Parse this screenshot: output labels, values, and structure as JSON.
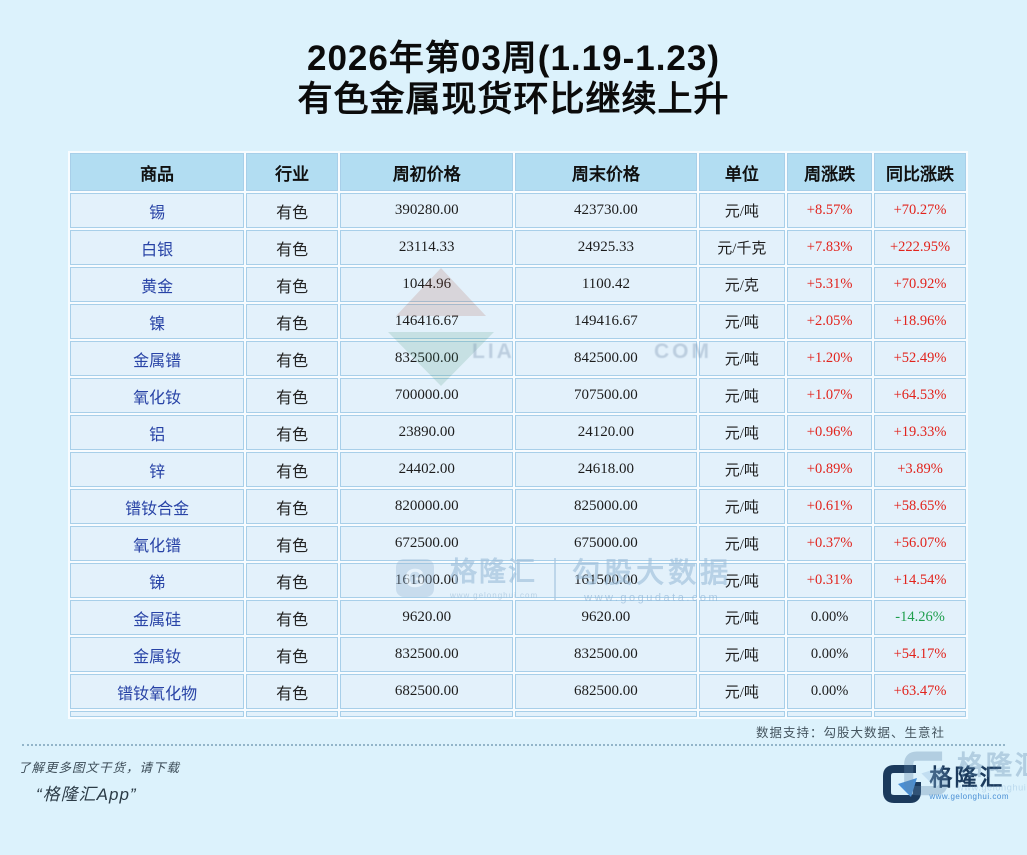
{
  "page": {
    "title_line1": "2026年第03周(1.19-1.23)",
    "title_line2": "有色金属现货环比继续上升",
    "support_note": "数据支持：勾股大数据、生意社",
    "footer": {
      "line1": "了解更多图文干货，请下载",
      "line2": "“格隆汇App”"
    },
    "brand": {
      "name": "格隆汇",
      "url": "www.gelonghui.com"
    },
    "watermarks": {
      "mid_left_initial": "G",
      "mid_left_name": "格隆汇",
      "mid_left_url": "www.gelonghui.com",
      "mid_right_name": "勾股大数据",
      "mid_right_url": "www.gogudata.com",
      "fragment_left": "LIA",
      "fragment_right": "COM"
    },
    "colors": {
      "background": "#dcf2fc",
      "header_cell": "#b2ddf2",
      "body_cell": "#e3f1fb",
      "cell_border": "#a8cfe9",
      "commodity_text": "#2843a6",
      "up_red": "#e2241d",
      "down_green": "#1f9e4d",
      "brand_navy": "#1b3a5c",
      "brand_blue": "#4a8fd4"
    }
  },
  "chart_data": {
    "type": "table",
    "title": "2026年第03周(1.19-1.23) 有色金属现货环比继续上升",
    "columns": [
      "商品",
      "行业",
      "周初价格",
      "周末价格",
      "单位",
      "周涨跌",
      "同比涨跌"
    ],
    "rows": [
      {
        "name": "锡",
        "industry": "有色",
        "start": "390280.00",
        "end": "423730.00",
        "unit": "元/吨",
        "wow": "+8.57%",
        "yoy": "+70.27%"
      },
      {
        "name": "白银",
        "industry": "有色",
        "start": "23114.33",
        "end": "24925.33",
        "unit": "元/千克",
        "wow": "+7.83%",
        "yoy": "+222.95%"
      },
      {
        "name": "黄金",
        "industry": "有色",
        "start": "1044.96",
        "end": "1100.42",
        "unit": "元/克",
        "wow": "+5.31%",
        "yoy": "+70.92%"
      },
      {
        "name": "镍",
        "industry": "有色",
        "start": "146416.67",
        "end": "149416.67",
        "unit": "元/吨",
        "wow": "+2.05%",
        "yoy": "+18.96%"
      },
      {
        "name": "金属镨",
        "industry": "有色",
        "start": "832500.00",
        "end": "842500.00",
        "unit": "元/吨",
        "wow": "+1.20%",
        "yoy": "+52.49%"
      },
      {
        "name": "氧化钕",
        "industry": "有色",
        "start": "700000.00",
        "end": "707500.00",
        "unit": "元/吨",
        "wow": "+1.07%",
        "yoy": "+64.53%"
      },
      {
        "name": "铝",
        "industry": "有色",
        "start": "23890.00",
        "end": "24120.00",
        "unit": "元/吨",
        "wow": "+0.96%",
        "yoy": "+19.33%"
      },
      {
        "name": "锌",
        "industry": "有色",
        "start": "24402.00",
        "end": "24618.00",
        "unit": "元/吨",
        "wow": "+0.89%",
        "yoy": "+3.89%"
      },
      {
        "name": "镨钕合金",
        "industry": "有色",
        "start": "820000.00",
        "end": "825000.00",
        "unit": "元/吨",
        "wow": "+0.61%",
        "yoy": "+58.65%"
      },
      {
        "name": "氧化镨",
        "industry": "有色",
        "start": "672500.00",
        "end": "675000.00",
        "unit": "元/吨",
        "wow": "+0.37%",
        "yoy": "+56.07%"
      },
      {
        "name": "锑",
        "industry": "有色",
        "start": "161000.00",
        "end": "161500.00",
        "unit": "元/吨",
        "wow": "+0.31%",
        "yoy": "+14.54%"
      },
      {
        "name": "金属硅",
        "industry": "有色",
        "start": "9620.00",
        "end": "9620.00",
        "unit": "元/吨",
        "wow": "0.00%",
        "yoy": "-14.26%"
      },
      {
        "name": "金属钕",
        "industry": "有色",
        "start": "832500.00",
        "end": "832500.00",
        "unit": "元/吨",
        "wow": "0.00%",
        "yoy": "+54.17%"
      },
      {
        "name": "镨钕氧化物",
        "industry": "有色",
        "start": "682500.00",
        "end": "682500.00",
        "unit": "元/吨",
        "wow": "0.00%",
        "yoy": "+63.47%"
      }
    ]
  }
}
